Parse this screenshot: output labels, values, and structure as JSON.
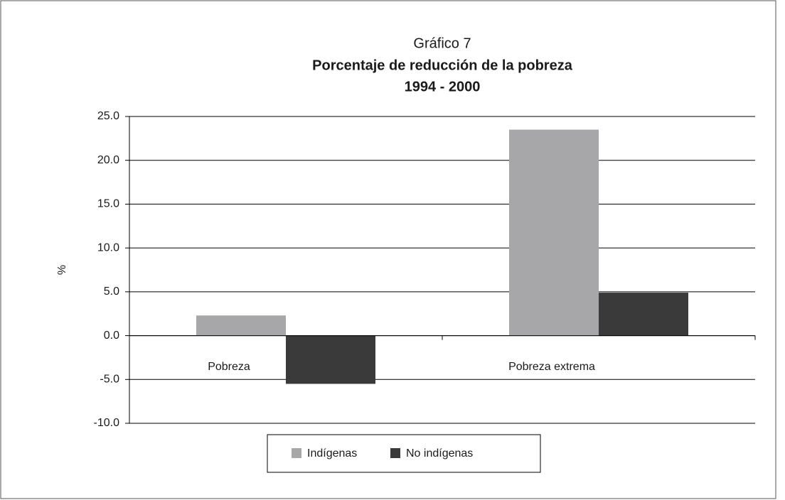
{
  "chart_data": {
    "type": "bar",
    "title": "Gráfico 7",
    "subtitle": "Porcentaje de reducción de la pobreza",
    "subtitle2": "1994 - 2000",
    "ylabel": "%",
    "categories": [
      "Pobreza",
      "Pobreza extrema"
    ],
    "series": [
      {
        "name": "Indígenas",
        "color": "#a7a7a9",
        "values": [
          2.3,
          23.5
        ]
      },
      {
        "name": "No indígenas",
        "color": "#3a3a3a",
        "values": [
          -5.5,
          4.9
        ]
      }
    ],
    "ylim": [
      -10,
      25
    ],
    "yticks": [
      {
        "value": -10,
        "label": "-10.0"
      },
      {
        "value": -5,
        "label": "-5.0"
      },
      {
        "value": 0,
        "label": "0.0"
      },
      {
        "value": 5,
        "label": "5.0"
      },
      {
        "value": 10,
        "label": "10.0"
      },
      {
        "value": 15,
        "label": "15.0"
      },
      {
        "value": 20,
        "label": "20.0"
      },
      {
        "value": 25,
        "label": "25.0"
      }
    ],
    "grid": true,
    "legend": "bottom"
  }
}
